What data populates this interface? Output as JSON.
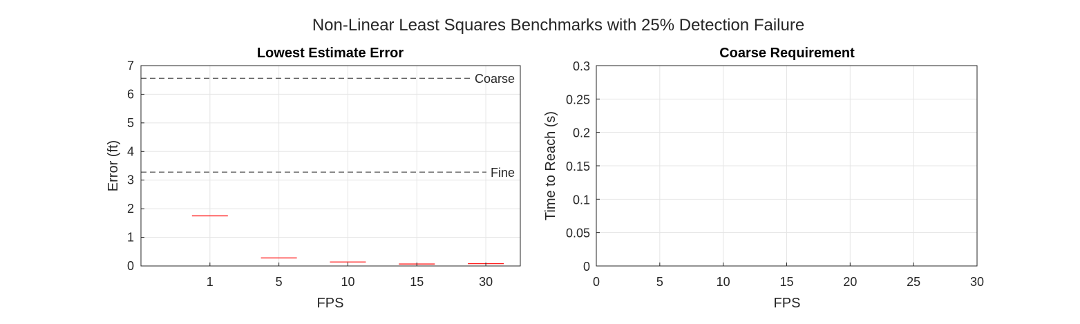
{
  "figure": {
    "title": "Non-Linear Least Squares Benchmarks with 25% Detection Failure"
  },
  "chart_data": [
    {
      "type": "box",
      "title": "Lowest Estimate Error",
      "xlabel": "FPS",
      "ylabel": "Error (ft)",
      "categories": [
        "1",
        "5",
        "10",
        "15",
        "30"
      ],
      "values": [
        1.75,
        0.28,
        0.14,
        0.07,
        0.08
      ],
      "ylim": [
        0,
        7
      ],
      "yticks": [
        "0",
        "1",
        "2",
        "3",
        "4",
        "5",
        "6",
        "7"
      ],
      "grid": true,
      "reference_lines": [
        {
          "label": "Coarse",
          "y": 6.56
        },
        {
          "label": "Fine",
          "y": 3.28
        }
      ],
      "colors": {
        "median": "#ff0000",
        "reference": "#262626"
      }
    },
    {
      "type": "line",
      "title": "Coarse Requirement",
      "xlabel": "FPS",
      "ylabel": "Time to Reach (s)",
      "xlim": [
        0,
        30
      ],
      "ylim": [
        0,
        0.3
      ],
      "xticks": [
        "0",
        "5",
        "10",
        "15",
        "20",
        "25",
        "30"
      ],
      "yticks": [
        "0",
        "0.05",
        "0.1",
        "0.15",
        "0.2",
        "0.25",
        "0.3"
      ],
      "grid": true,
      "series": []
    }
  ]
}
